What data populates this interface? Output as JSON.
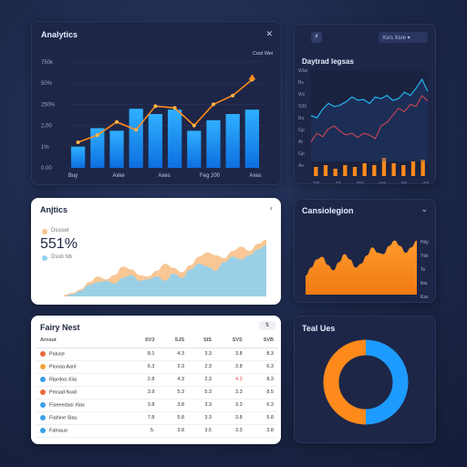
{
  "cards": {
    "revenue": {
      "title": "Analytics",
      "close": "✕",
      "legend": "Cost Wei"
    },
    "trends": {
      "title": "Daytrad legsas",
      "badge": "⚡",
      "dropdown": "Xsrs Xsre ▾"
    },
    "area": {
      "title": "Anjtics",
      "close": "‹",
      "metric": "551%",
      "legend_1": "Dssiset",
      "legend_2": "Dssb Nb"
    },
    "orange": {
      "title": "Cansiolegion",
      "chevron": "⌄"
    },
    "table": {
      "title": "Fairy Nest",
      "filter": "⇅",
      "headers": [
        "Arnsut",
        "SV3",
        "SJS",
        "SIS",
        "SVS",
        "SVB"
      ],
      "rows": [
        {
          "label": "Paluse",
          "values": [
            "8.1",
            "4.3",
            "3.3",
            "3.8",
            "8.3"
          ]
        },
        {
          "label": "Piooaa Aanl",
          "values": [
            "6.3",
            "2.3",
            "2.3",
            "3.8",
            "6.3"
          ]
        },
        {
          "label": "Riprdoo Xiia",
          "values": [
            "2.8",
            "4.3",
            "2.3",
            "4.3",
            "8.3"
          ]
        },
        {
          "label": "Pmsad Nuid",
          "values": [
            "3.9",
            "5.3",
            "5.3",
            "3.3",
            "8.5"
          ]
        },
        {
          "label": "Fiseeedasi Xlas",
          "values": [
            "3.8",
            "3.8",
            "3.3",
            "3.3",
            "6.3"
          ]
        },
        {
          "label": "Fiahine Slau",
          "values": [
            "7.8",
            "5.8",
            "3.3",
            "3.8",
            "5.8"
          ]
        },
        {
          "label": "Fahiauo",
          "values": [
            "5.",
            "3.8",
            "3.5",
            "3.3",
            "3.8"
          ]
        }
      ]
    },
    "donut": {
      "title": "Teal Ues"
    }
  },
  "colors": {
    "blue": "#1e9bff",
    "orange": "#ff8a1c",
    "red": "#e0484f",
    "cyan": "#26b4f0",
    "light_blue": "#8fd0ee",
    "peach": "#f7c18a",
    "row_dots": [
      "#e8683a",
      "#f2a33a",
      "#3aa0e8",
      "#e8683a",
      "#3aa0e8",
      "#3aa0e8",
      "#3aa0e8"
    ]
  },
  "chart_data": [
    {
      "type": "bar",
      "title": "Analytics",
      "categories": [
        "1",
        "2",
        "3",
        "4",
        "5",
        "6",
        "7",
        "8",
        "9",
        "10"
      ],
      "series": [
        {
          "name": "Cost Wei",
          "values": [
            24,
            45,
            42,
            67,
            61,
            66,
            42,
            54,
            61,
            66
          ]
        },
        {
          "values": [
            29,
            37,
            52,
            43,
            70,
            68,
            48,
            72,
            82,
            100
          ]
        }
      ],
      "y_ticks": [
        "750k",
        "50%",
        "250%",
        "2,00",
        "1%",
        "0.00"
      ],
      "x_ticks": [
        "Buy",
        "Axke",
        "Axes",
        "Feg 200",
        "Axes"
      ],
      "ylim": [
        0,
        120
      ]
    },
    {
      "type": "line",
      "title": "Daytrad legsas",
      "x": [
        0,
        1,
        2,
        3,
        4,
        5,
        6,
        7,
        8,
        9,
        10,
        11,
        12,
        13,
        14,
        15,
        16,
        17,
        18,
        19,
        20
      ],
      "series": [
        {
          "color": "cyan",
          "values": [
            55,
            52,
            63,
            70,
            66,
            68,
            72,
            78,
            74,
            75,
            70,
            78,
            76,
            80,
            74,
            76,
            84,
            80,
            89,
            100,
            85
          ]
        },
        {
          "color": "red",
          "values": [
            40,
            50,
            46,
            55,
            58,
            52,
            48,
            50,
            45,
            50,
            48,
            44,
            58,
            62,
            70,
            78,
            74,
            82,
            80,
            92,
            86
          ]
        }
      ],
      "bars": [
        10,
        12,
        8,
        12,
        10,
        14,
        12,
        20,
        14,
        12,
        16,
        18
      ],
      "y_ticks": [
        "Wlat",
        "Bs",
        "Ws",
        "S30",
        "Ba",
        "Gp",
        "At",
        "Gp",
        "As"
      ],
      "x_ticks": [
        "Dst",
        "Tm",
        "Bss",
        "Aas",
        "Ats",
        "Ats"
      ],
      "ylim": [
        0,
        100
      ]
    },
    {
      "type": "area",
      "title": "Anjtics",
      "x": [
        0,
        1,
        2,
        3,
        4,
        5,
        6,
        7,
        8,
        9,
        10,
        11,
        12,
        13,
        14,
        15,
        16,
        17,
        18,
        19,
        20,
        21,
        22,
        23,
        24
      ],
      "series": [
        {
          "name": "Dssiset",
          "color": "peach",
          "values": [
            2,
            5,
            10,
            20,
            28,
            24,
            30,
            42,
            38,
            30,
            28,
            36,
            46,
            40,
            34,
            44,
            56,
            62,
            58,
            54,
            64,
            70,
            64,
            74,
            80
          ]
        },
        {
          "name": "Dssb Nb",
          "color": "light_blue",
          "values": [
            0,
            3,
            8,
            16,
            20,
            22,
            18,
            26,
            30,
            22,
            24,
            28,
            22,
            32,
            26,
            38,
            46,
            42,
            36,
            48,
            56,
            52,
            58,
            66,
            72
          ]
        }
      ],
      "ylim": [
        0,
        100
      ]
    },
    {
      "type": "area",
      "title": "Cansiolegion",
      "x": [
        0,
        1,
        2,
        3,
        4,
        5,
        6,
        7,
        8,
        9,
        10,
        11,
        12,
        13,
        14,
        15,
        16,
        17,
        18,
        19,
        20
      ],
      "series": [
        {
          "color": "orange",
          "values": [
            28,
            40,
            52,
            56,
            44,
            36,
            48,
            60,
            52,
            40,
            46,
            58,
            70,
            62,
            60,
            72,
            80,
            72,
            62,
            70,
            80
          ]
        }
      ],
      "y_ticks": [
        "Hdy",
        "Yds",
        "Ts",
        "tlss",
        "Kss"
      ],
      "ylim": [
        0,
        100
      ]
    },
    {
      "type": "pie",
      "title": "Teal Ues",
      "slices": [
        {
          "color": "blue",
          "value": 50
        },
        {
          "color": "orange",
          "value": 50
        }
      ]
    }
  ]
}
